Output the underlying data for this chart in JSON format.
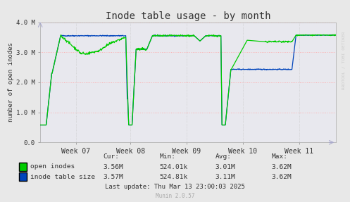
{
  "title": "Inode table usage - by month",
  "ylabel": "number of open inodes",
  "green_color": "#00cc00",
  "blue_color": "#0044bb",
  "bg_color": "#e8e8e8",
  "plot_bg_color": "#e8e8ee",
  "grid_color_h": "#ffaaaa",
  "grid_color_v": "#cccccc",
  "ytick_labels": [
    "0.0",
    "1.0 M",
    "2.0 M",
    "3.0 M",
    "4.0 M"
  ],
  "ytick_vals": [
    0,
    1000000,
    2000000,
    3000000,
    4000000
  ],
  "week_labels": [
    "Week 07",
    "Week 08",
    "Week 09",
    "Week 10",
    "Week 11"
  ],
  "legend_items": [
    {
      "label": "open inodes",
      "color": "#00cc00"
    },
    {
      "label": "inode table size",
      "color": "#0044bb"
    }
  ],
  "stats_headers": [
    "Cur:",
    "Min:",
    "Avg:",
    "Max:"
  ],
  "open_inodes_stats": [
    "3.56M",
    "524.01k",
    "3.01M",
    "3.62M"
  ],
  "inode_table_stats": [
    "3.57M",
    "524.81k",
    "3.11M",
    "3.62M"
  ],
  "last_update": "Last update: Thu Mar 13 23:00:03 2025",
  "munin_version": "Munin 2.0.57",
  "rrdtool_label": "RRDTOOL / TOBI OETIKER"
}
